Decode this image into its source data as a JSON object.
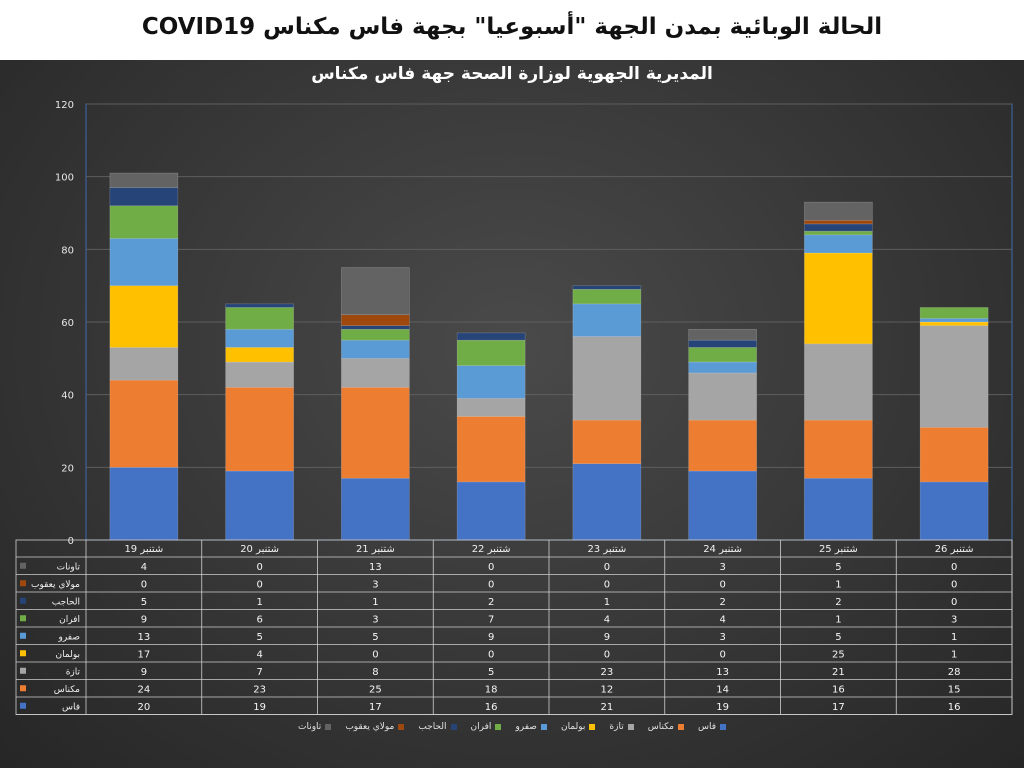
{
  "header": {
    "title": "الحالة الوبائية بمدن الجهة  \"أسبوعيا\" بجهة فاس مكناس COVID19",
    "subtitle": "المديرية الجهوية لوزارة الصحة جهة فاس مكناس"
  },
  "chart_data": {
    "type": "bar",
    "stacked": true,
    "ylim": [
      0,
      120
    ],
    "yticks": [
      "0",
      "20",
      "40",
      "60",
      "80",
      "100",
      "120"
    ],
    "categories": [
      "شتنبر 19",
      "شتنبر 20",
      "شتنبر 21",
      "شتنبر 22",
      "شتنبر 23",
      "شتنبر 24",
      "شتنبر 25",
      "26 شتنبر"
    ],
    "series": [
      {
        "name": "فاس",
        "color": "#4472c4",
        "values": [
          20,
          19,
          17,
          16,
          21,
          19,
          17,
          16
        ]
      },
      {
        "name": "مكناس",
        "color": "#ed7d31",
        "values": [
          24,
          23,
          25,
          18,
          12,
          14,
          16,
          15
        ]
      },
      {
        "name": "تازة",
        "color": "#a5a5a5",
        "values": [
          9,
          7,
          8,
          5,
          23,
          13,
          21,
          28
        ]
      },
      {
        "name": "بولمان",
        "color": "#ffc000",
        "values": [
          17,
          4,
          0,
          0,
          0,
          0,
          25,
          1
        ]
      },
      {
        "name": "صفرو",
        "color": "#5b9bd5",
        "values": [
          13,
          5,
          5,
          9,
          9,
          3,
          5,
          1
        ]
      },
      {
        "name": "افران",
        "color": "#70ad47",
        "values": [
          9,
          6,
          3,
          7,
          4,
          4,
          1,
          3
        ]
      },
      {
        "name": "الحاجب",
        "color": "#264478",
        "values": [
          5,
          1,
          1,
          2,
          1,
          2,
          2,
          0
        ]
      },
      {
        "name": "مولاي يعقوب",
        "color": "#9e480e",
        "values": [
          0,
          0,
          3,
          0,
          0,
          0,
          1,
          0
        ]
      },
      {
        "name": "تاونات",
        "color": "#636363",
        "values": [
          4,
          0,
          13,
          0,
          0,
          3,
          5,
          0
        ]
      }
    ],
    "table_row_order": [
      "تاونات",
      "مولاي يعقوب",
      "الحاجب",
      "افران",
      "صفرو",
      "بولمان",
      "تازة",
      "مكناس",
      "فاس"
    ],
    "grid": true,
    "legend": "bottom"
  }
}
